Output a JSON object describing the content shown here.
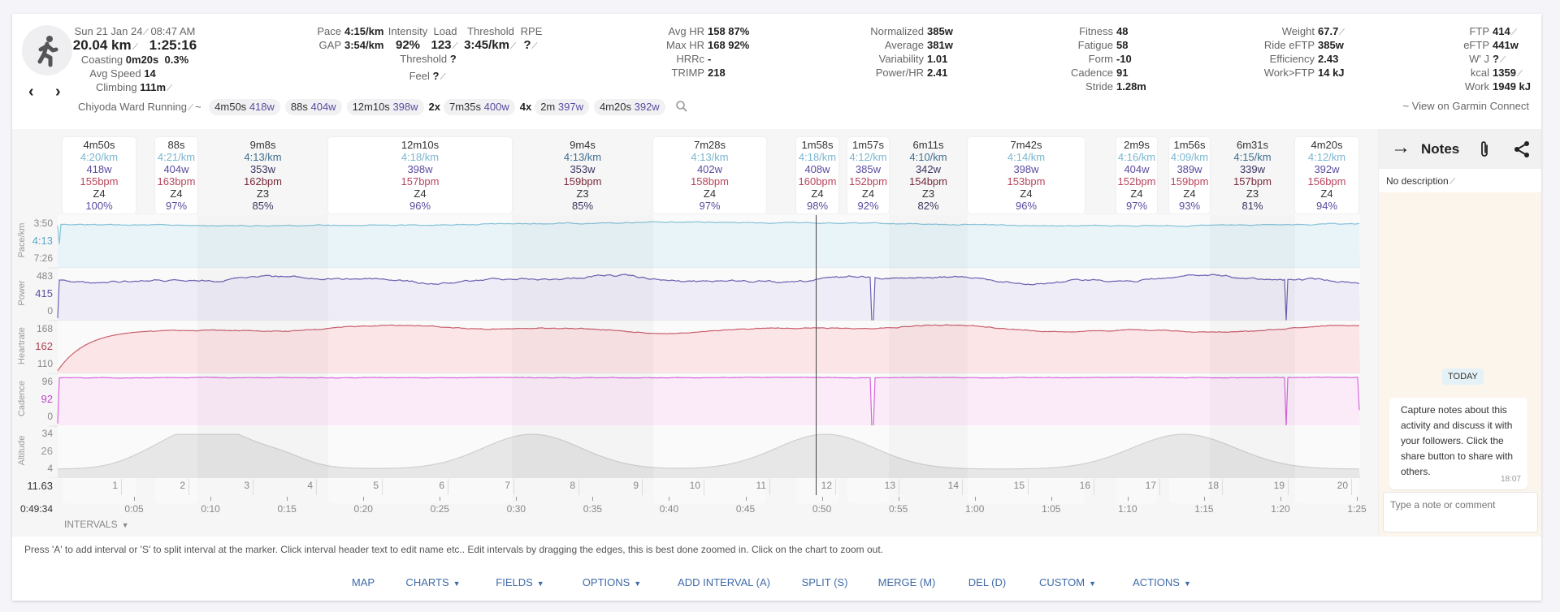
{
  "activity": {
    "date": "Sun 21 Jan 24",
    "time": "08:47 AM",
    "distance": "20.04 km",
    "duration": "1:25:16",
    "coasting_label": "Coasting",
    "coasting_time": "0m20s",
    "coasting_pct": "0.3%",
    "avg_speed_label": "Avg Speed",
    "avg_speed": "14",
    "climbing_label": "Climbing",
    "climbing": "111m",
    "name": "Chiyoda Ward Running",
    "tilde": "~"
  },
  "pace_col": [
    {
      "label": "Pace",
      "value": "4:15/km"
    },
    {
      "label": "GAP",
      "value": "3:54/km"
    }
  ],
  "load_block": {
    "headers": [
      "Intensity",
      "Load",
      "Threshold",
      "RPE"
    ],
    "values": [
      "92%",
      "123",
      "3:45/km",
      "?"
    ],
    "threshold_label": "Threshold",
    "threshold_value": "?",
    "feel_label": "Feel",
    "feel_value": "?"
  },
  "hr_col": [
    {
      "label": "Avg HR",
      "value": "158  87%"
    },
    {
      "label": "Max HR",
      "value": "168  92%"
    },
    {
      "label": "HRRc",
      "value": "-"
    },
    {
      "label": "TRIMP",
      "value": "218"
    }
  ],
  "power_col": [
    {
      "label": "Normalized",
      "value": "385w"
    },
    {
      "label": "Average",
      "value": "381w"
    },
    {
      "label": "Variability",
      "value": "1.01"
    },
    {
      "label": "Power/HR",
      "value": "2.41"
    }
  ],
  "fitness_col": [
    {
      "label": "Fitness",
      "value": "48"
    },
    {
      "label": "Fatigue",
      "value": "58"
    },
    {
      "label": "Form",
      "value": "-10"
    },
    {
      "label": "Cadence",
      "value": "91"
    },
    {
      "label": "Stride",
      "value": "1.28m"
    }
  ],
  "weight_col": [
    {
      "label": "Weight",
      "value": "67.7"
    },
    {
      "label": "Ride eFTP",
      "value": "385w"
    },
    {
      "label": "Efficiency",
      "value": "2.43"
    },
    {
      "label": "Work>FTP",
      "value": "14 kJ"
    }
  ],
  "ftp_col": [
    {
      "label": "FTP",
      "value": "414"
    },
    {
      "label": "eFTP",
      "value": "441w"
    },
    {
      "label": "W' J",
      "value": "?"
    },
    {
      "label": "kcal",
      "value": "1359"
    },
    {
      "label": "Work",
      "value": "1949 kJ"
    }
  ],
  "garmin_link": "~ View on Garmin Connect",
  "interval_tags": [
    {
      "repeat": "",
      "duration": "4m50s",
      "power": "418w"
    },
    {
      "repeat": "",
      "duration": "88s",
      "power": "404w"
    },
    {
      "repeat": "",
      "duration": "12m10s",
      "power": "398w"
    },
    {
      "repeat": "2x",
      "duration": "7m35s",
      "power": "400w"
    },
    {
      "repeat": "4x",
      "duration": "2m",
      "power": "397w"
    },
    {
      "repeat": "",
      "duration": "4m20s",
      "power": "392w"
    }
  ],
  "intervals": [
    {
      "duration": "4m50s",
      "pace": "4:20/km",
      "power": "418w",
      "hr": "155bpm",
      "zone": "Z4",
      "pct": "100%"
    },
    {
      "duration": "88s",
      "pace": "4:21/km",
      "power": "404w",
      "hr": "163bpm",
      "zone": "Z4",
      "pct": "97%"
    },
    {
      "duration": "9m8s",
      "pace": "4:13/km",
      "power": "353w",
      "hr": "162bpm",
      "zone": "Z3",
      "pct": "85%"
    },
    {
      "duration": "12m10s",
      "pace": "4:18/km",
      "power": "398w",
      "hr": "157bpm",
      "zone": "Z4",
      "pct": "96%"
    },
    {
      "duration": "9m4s",
      "pace": "4:13/km",
      "power": "353w",
      "hr": "159bpm",
      "zone": "Z3",
      "pct": "85%"
    },
    {
      "duration": "7m28s",
      "pace": "4:13/km",
      "power": "402w",
      "hr": "158bpm",
      "zone": "Z4",
      "pct": "97%"
    },
    {
      "duration": "1m58s",
      "pace": "4:18/km",
      "power": "408w",
      "hr": "160bpm",
      "zone": "Z4",
      "pct": "98%"
    },
    {
      "duration": "1m57s",
      "pace": "4:12/km",
      "power": "385w",
      "hr": "152bpm",
      "zone": "Z4",
      "pct": "92%"
    },
    {
      "duration": "6m11s",
      "pace": "4:10/km",
      "power": "342w",
      "hr": "154bpm",
      "zone": "Z3",
      "pct": "82%"
    },
    {
      "duration": "7m42s",
      "pace": "4:14/km",
      "power": "398w",
      "hr": "153bpm",
      "zone": "Z4",
      "pct": "96%"
    },
    {
      "duration": "2m9s",
      "pace": "4:16/km",
      "power": "404w",
      "hr": "152bpm",
      "zone": "Z4",
      "pct": "97%"
    },
    {
      "duration": "1m56s",
      "pace": "4:09/km",
      "power": "389w",
      "hr": "159bpm",
      "zone": "Z4",
      "pct": "93%"
    },
    {
      "duration": "6m31s",
      "pace": "4:15/km",
      "power": "339w",
      "hr": "157bpm",
      "zone": "Z3",
      "pct": "81%"
    },
    {
      "duration": "4m20s",
      "pace": "4:12/km",
      "power": "392w",
      "hr": "156bpm",
      "zone": "Z4",
      "pct": "94%"
    }
  ],
  "plots": [
    {
      "title": "Pace/km",
      "top": "3:50",
      "mid": "4:13",
      "bottom": "7:26",
      "color": "#5aa7c9",
      "line": "#86c2d8",
      "fill": "#e9f4f8"
    },
    {
      "title": "Power",
      "top": "483",
      "mid": "415",
      "bottom": "0",
      "color": "#5b4b9e",
      "line": "#6e5fb3",
      "fill": "#eeecf6"
    },
    {
      "title": "Heartrate",
      "top": "168",
      "mid": "162",
      "bottom": "110",
      "color": "#b0404f",
      "line": "#c9606e",
      "fill": "#fbe5e7"
    },
    {
      "title": "Cadence",
      "top": "96",
      "mid": "92",
      "bottom": "0",
      "color": "#c040c8",
      "line": "#d765dc",
      "fill": "#fbebf8"
    },
    {
      "title": "Altitude",
      "top": "34",
      "mid": "26",
      "bottom": "4",
      "color": "#999999",
      "line": "#cfcfcf",
      "fill": "#e7e7e7"
    }
  ],
  "laps": [
    "1",
    "2",
    "3",
    "4",
    "5",
    "6",
    "7",
    "8",
    "9",
    "10",
    "11",
    "12",
    "13",
    "14",
    "15",
    "16",
    "17",
    "18",
    "19",
    "20"
  ],
  "lap_readout": "11.63",
  "time_readout": "0:49:34",
  "time_ticks": [
    "0:05",
    "0:10",
    "0:15",
    "0:20",
    "0:25",
    "0:30",
    "0:35",
    "0:40",
    "0:45",
    "0:50",
    "0:55",
    "1:00",
    "1:05",
    "1:10",
    "1:15",
    "1:20",
    "1:25"
  ],
  "intervals_menu": "INTERVALS",
  "help_text": "Press 'A' to add interval or 'S' to split interval at the marker. Click interval header text to edit name etc.. Edit intervals by dragging the edges, this is best done zoomed in. Click on the chart to zoom out.",
  "toolbar": [
    {
      "label": "MAP",
      "caret": false
    },
    {
      "label": "CHARTS",
      "caret": true
    },
    {
      "label": "FIELDS",
      "caret": true
    },
    {
      "label": "OPTIONS",
      "caret": true
    },
    {
      "label": "ADD INTERVAL (A)",
      "caret": false
    },
    {
      "label": "SPLIT (S)",
      "caret": false
    },
    {
      "label": "MERGE (M)",
      "caret": false
    },
    {
      "label": "DEL (D)",
      "caret": false
    },
    {
      "label": "CUSTOM",
      "caret": true
    },
    {
      "label": "ACTIONS",
      "caret": true
    }
  ],
  "notes": {
    "title": "Notes",
    "description": "No description",
    "day_badge": "TODAY",
    "message": "Capture notes about this activity and discuss it with your followers. Click the share button to share with others.",
    "message_time": "18:07",
    "input_placeholder": "Type a note or comment"
  }
}
